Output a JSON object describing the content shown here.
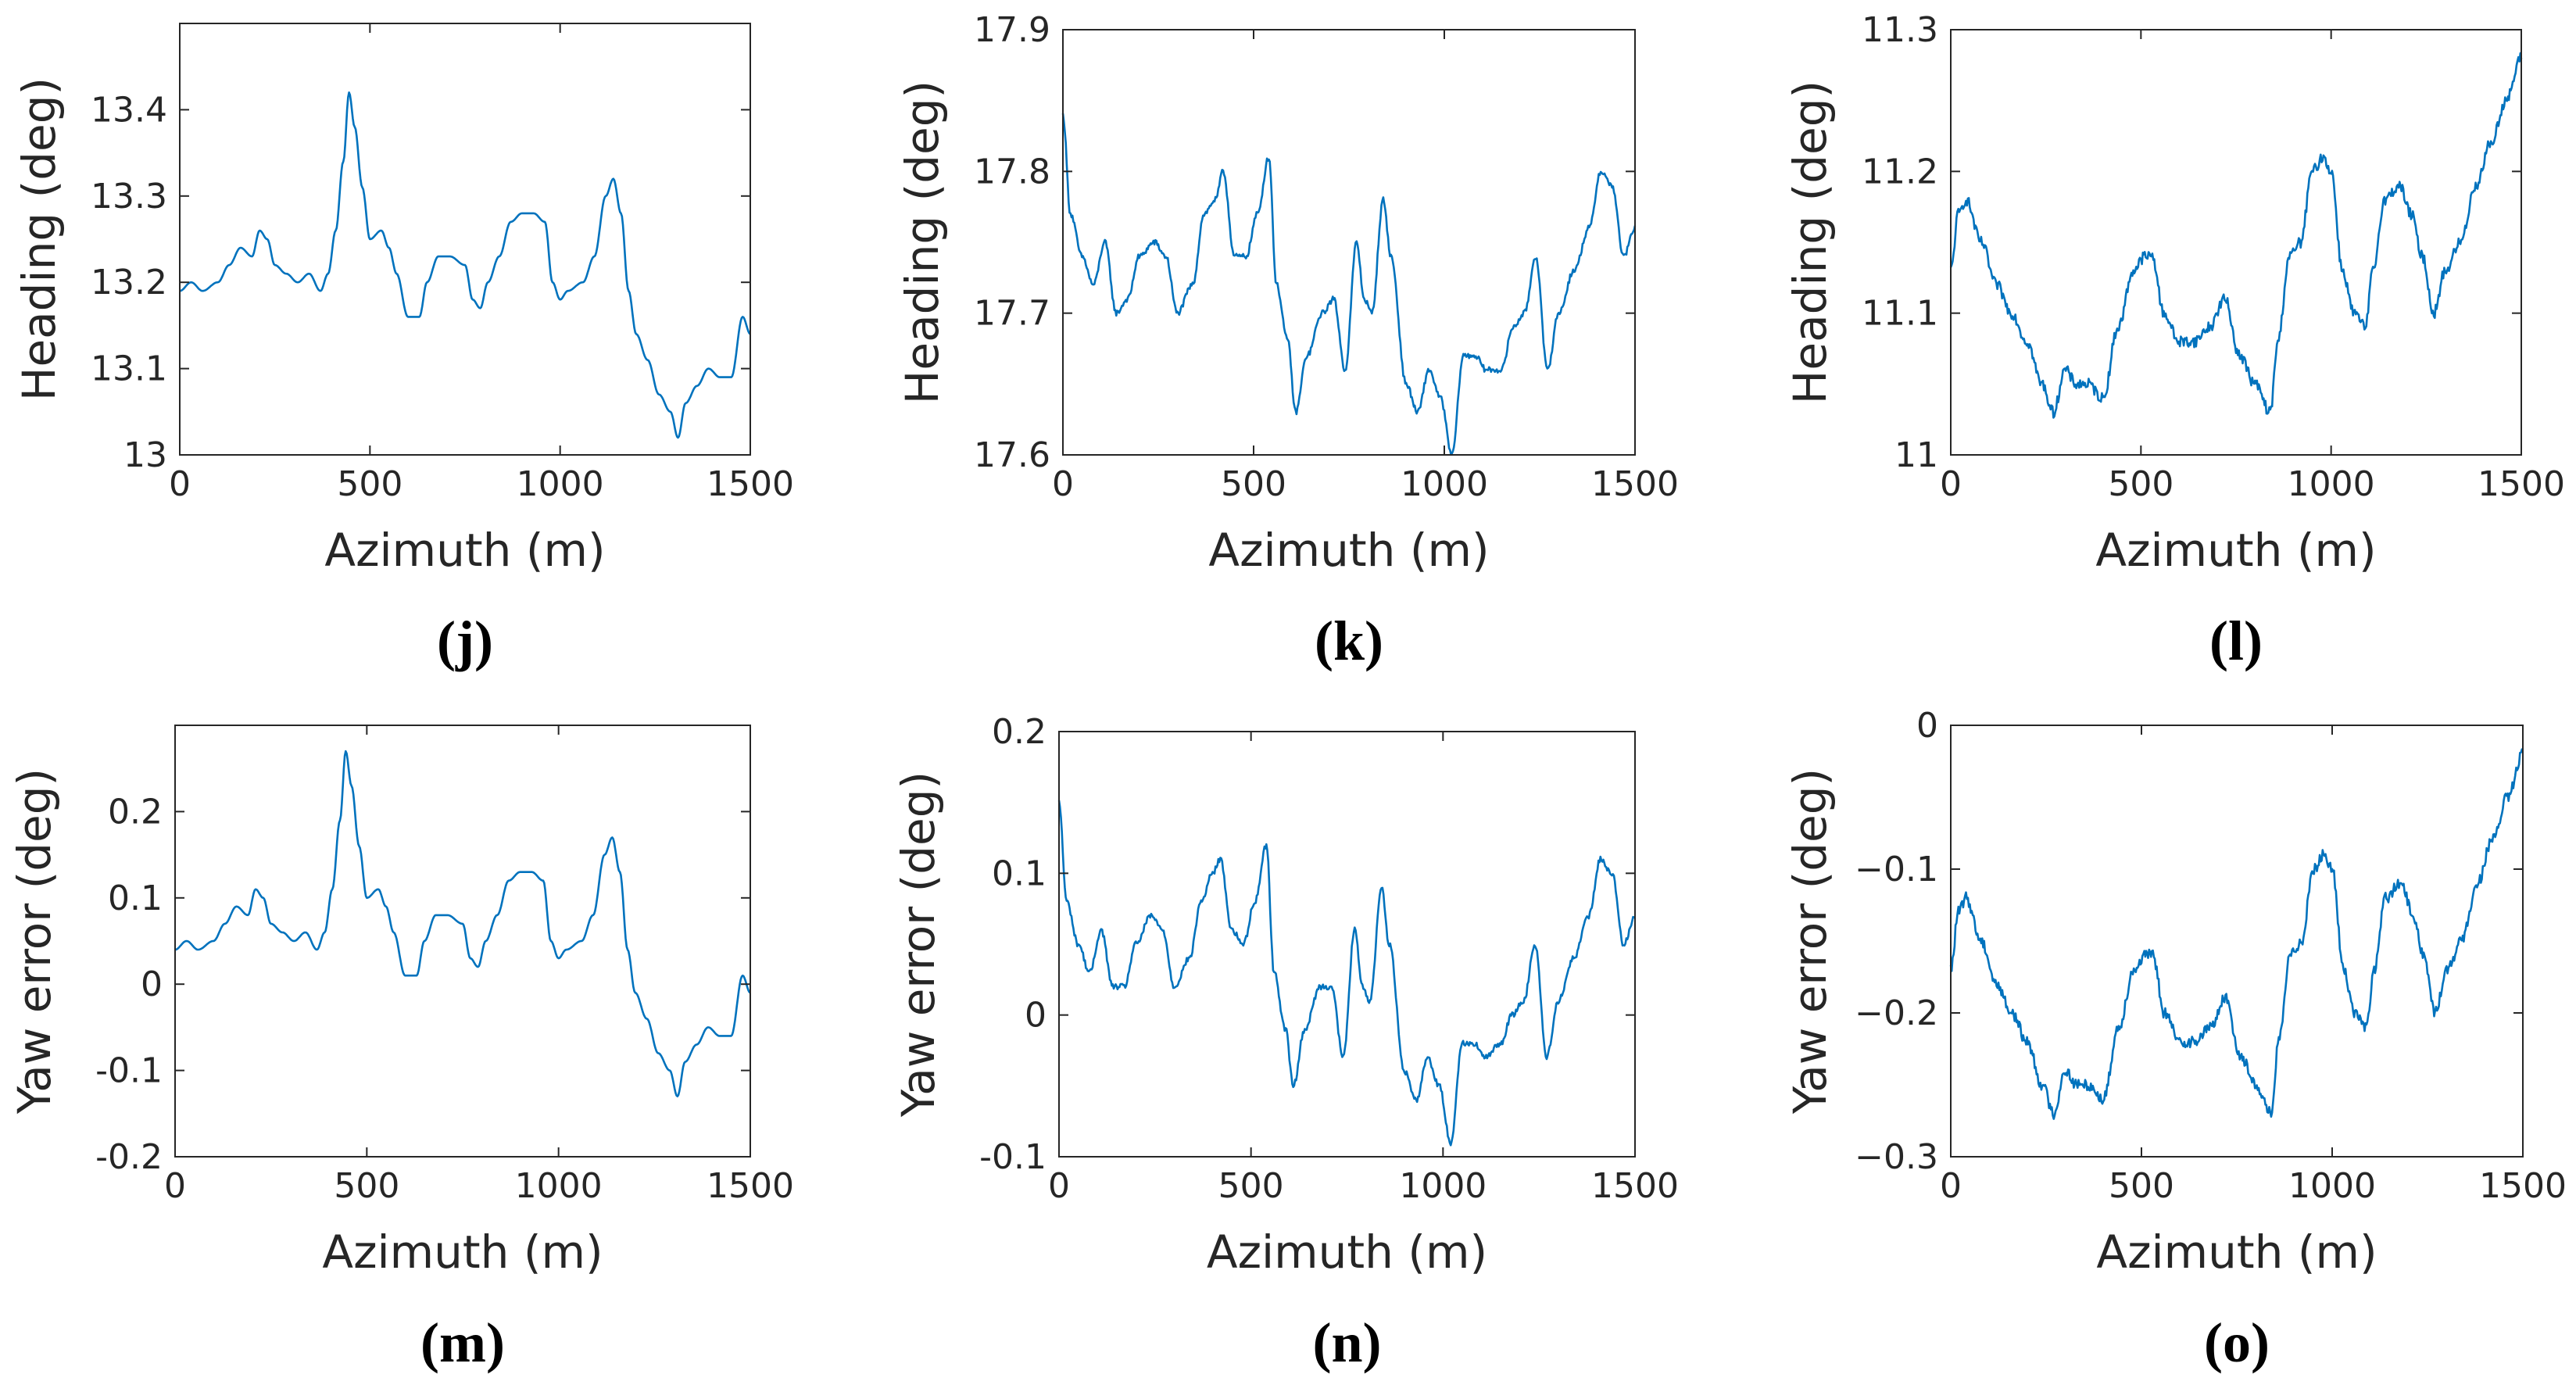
{
  "figure": {
    "panels": [
      "j",
      "k",
      "l",
      "m",
      "n",
      "o"
    ]
  },
  "chart_data": [
    {
      "id": "j",
      "type": "line",
      "panel_label": "(j)",
      "xlabel": "Azimuth (m)",
      "ylabel": "Heading (deg)",
      "xlim": [
        0,
        1500
      ],
      "ylim": [
        13.0,
        13.5
      ],
      "xticks": [
        0,
        500,
        1000,
        1500
      ],
      "xtick_labels": [
        "0",
        "500",
        "1000",
        "1500"
      ],
      "yticks": [
        13.0,
        13.1,
        13.2,
        13.3,
        13.4
      ],
      "ytick_labels": [
        "13",
        "13.1",
        "13.2",
        "13.3",
        "13.4"
      ],
      "noise": 0.0,
      "series": [
        {
          "name": "Heading",
          "color": "#0072BD",
          "x": [
            0,
            30,
            60,
            100,
            130,
            160,
            190,
            210,
            230,
            250,
            280,
            310,
            340,
            370,
            390,
            410,
            430,
            445,
            460,
            480,
            500,
            530,
            550,
            570,
            600,
            630,
            650,
            680,
            710,
            750,
            770,
            790,
            810,
            840,
            870,
            900,
            930,
            960,
            980,
            1000,
            1020,
            1060,
            1090,
            1120,
            1140,
            1160,
            1180,
            1200,
            1230,
            1260,
            1290,
            1310,
            1330,
            1360,
            1390,
            1420,
            1450,
            1480,
            1500
          ],
          "y": [
            13.19,
            13.2,
            13.19,
            13.2,
            13.22,
            13.24,
            13.23,
            13.26,
            13.25,
            13.22,
            13.21,
            13.2,
            13.21,
            13.19,
            13.21,
            13.26,
            13.34,
            13.42,
            13.38,
            13.31,
            13.25,
            13.26,
            13.24,
            13.21,
            13.16,
            13.16,
            13.2,
            13.23,
            13.23,
            13.22,
            13.18,
            13.17,
            13.2,
            13.23,
            13.27,
            13.28,
            13.28,
            13.27,
            13.2,
            13.18,
            13.19,
            13.2,
            13.23,
            13.3,
            13.32,
            13.28,
            13.19,
            13.14,
            13.11,
            13.07,
            13.05,
            13.02,
            13.06,
            13.08,
            13.1,
            13.09,
            13.09,
            13.16,
            13.14
          ]
        }
      ]
    },
    {
      "id": "k",
      "type": "line",
      "panel_label": "(k)",
      "xlabel": "Azimuth (m)",
      "ylabel": "Heading (deg)",
      "xlim": [
        0,
        1500
      ],
      "ylim": [
        17.6,
        17.9
      ],
      "xticks": [
        0,
        500,
        1000,
        1500
      ],
      "xtick_labels": [
        "0",
        "500",
        "1000",
        "1500"
      ],
      "yticks": [
        17.6,
        17.7,
        17.8,
        17.9
      ],
      "ytick_labels": [
        "17.6",
        "17.7",
        "17.8",
        "17.9"
      ],
      "noise": 0.002,
      "series": [
        {
          "name": "Heading",
          "color": "#0072BD",
          "x": [
            0,
            20,
            50,
            80,
            110,
            140,
            170,
            200,
            240,
            270,
            300,
            340,
            370,
            400,
            420,
            450,
            480,
            510,
            540,
            560,
            590,
            610,
            640,
            680,
            710,
            740,
            770,
            790,
            810,
            840,
            860,
            900,
            930,
            960,
            990,
            1020,
            1050,
            1080,
            1110,
            1150,
            1180,
            1210,
            1240,
            1270,
            1300,
            1340,
            1380,
            1410,
            1440,
            1470,
            1500
          ],
          "y": [
            17.84,
            17.77,
            17.74,
            17.72,
            17.75,
            17.7,
            17.71,
            17.74,
            17.75,
            17.74,
            17.7,
            17.72,
            17.77,
            17.78,
            17.8,
            17.74,
            17.74,
            17.77,
            17.81,
            17.72,
            17.68,
            17.63,
            17.67,
            17.7,
            17.71,
            17.66,
            17.75,
            17.71,
            17.7,
            17.78,
            17.74,
            17.65,
            17.63,
            17.66,
            17.64,
            17.6,
            17.67,
            17.67,
            17.66,
            17.66,
            17.69,
            17.7,
            17.74,
            17.66,
            17.7,
            17.73,
            17.76,
            17.8,
            17.79,
            17.74,
            17.76
          ]
        }
      ]
    },
    {
      "id": "l",
      "type": "line",
      "panel_label": "(l)",
      "xlabel": "Azimuth (m)",
      "ylabel": "Heading (deg)",
      "xlim": [
        0,
        1500
      ],
      "ylim": [
        11.0,
        11.3
      ],
      "xticks": [
        0,
        500,
        1000,
        1500
      ],
      "xtick_labels": [
        "0",
        "500",
        "1000",
        "1500"
      ],
      "yticks": [
        11.0,
        11.1,
        11.2,
        11.3
      ],
      "ytick_labels": [
        "11",
        "11.1",
        "11.2",
        "11.3"
      ],
      "noise": 0.004,
      "series": [
        {
          "name": "Heading",
          "color": "#0072BD",
          "x": [
            0,
            20,
            40,
            80,
            120,
            160,
            200,
            240,
            270,
            300,
            330,
            360,
            400,
            440,
            480,
            510,
            530,
            560,
            600,
            640,
            680,
            720,
            760,
            800,
            840,
            860,
            890,
            920,
            950,
            980,
            1000,
            1030,
            1060,
            1090,
            1110,
            1140,
            1180,
            1210,
            1240,
            1270,
            1300,
            1340,
            1380,
            1420,
            1460,
            1500
          ],
          "y": [
            11.13,
            11.17,
            11.18,
            11.15,
            11.12,
            11.1,
            11.08,
            11.05,
            11.03,
            11.06,
            11.05,
            11.05,
            11.04,
            11.09,
            11.13,
            11.14,
            11.14,
            11.1,
            11.08,
            11.08,
            11.09,
            11.11,
            11.07,
            11.05,
            11.03,
            11.08,
            11.14,
            11.15,
            11.2,
            11.21,
            11.2,
            11.13,
            11.1,
            11.09,
            11.13,
            11.18,
            11.19,
            11.17,
            11.14,
            11.1,
            11.13,
            11.15,
            11.19,
            11.22,
            11.25,
            11.28
          ]
        }
      ]
    },
    {
      "id": "m",
      "type": "line",
      "panel_label": "(m)",
      "xlabel": "Azimuth (m)",
      "ylabel": "Yaw error (deg)",
      "xlim": [
        0,
        1500
      ],
      "ylim": [
        -0.2,
        0.3
      ],
      "xticks": [
        0,
        500,
        1000,
        1500
      ],
      "xtick_labels": [
        "0",
        "500",
        "1000",
        "1500"
      ],
      "yticks": [
        -0.2,
        -0.1,
        0,
        0.1,
        0.2
      ],
      "ytick_labels": [
        "-0.2",
        "-0.1",
        "0",
        "0.1",
        "0.2"
      ],
      "noise": 0.0,
      "series": [
        {
          "name": "Yaw error",
          "color": "#0072BD",
          "x": [
            0,
            30,
            60,
            100,
            130,
            160,
            190,
            210,
            230,
            250,
            280,
            310,
            340,
            370,
            390,
            410,
            430,
            445,
            460,
            480,
            500,
            530,
            550,
            570,
            600,
            630,
            650,
            680,
            710,
            750,
            770,
            790,
            810,
            840,
            870,
            900,
            930,
            960,
            980,
            1000,
            1020,
            1060,
            1090,
            1120,
            1140,
            1160,
            1180,
            1200,
            1230,
            1260,
            1290,
            1310,
            1330,
            1360,
            1390,
            1420,
            1450,
            1480,
            1500
          ],
          "y": [
            0.04,
            0.05,
            0.04,
            0.05,
            0.07,
            0.09,
            0.08,
            0.11,
            0.1,
            0.07,
            0.06,
            0.05,
            0.06,
            0.04,
            0.06,
            0.11,
            0.19,
            0.27,
            0.23,
            0.16,
            0.1,
            0.11,
            0.09,
            0.06,
            0.01,
            0.01,
            0.05,
            0.08,
            0.08,
            0.07,
            0.03,
            0.02,
            0.05,
            0.08,
            0.12,
            0.13,
            0.13,
            0.12,
            0.05,
            0.03,
            0.04,
            0.05,
            0.08,
            0.15,
            0.17,
            0.13,
            0.04,
            -0.01,
            -0.04,
            -0.08,
            -0.1,
            -0.13,
            -0.09,
            -0.07,
            -0.05,
            -0.06,
            -0.06,
            0.01,
            -0.01
          ]
        }
      ]
    },
    {
      "id": "n",
      "type": "line",
      "panel_label": "(n)",
      "xlabel": "Azimuth (m)",
      "ylabel": "Yaw error (deg)",
      "xlim": [
        0,
        1500
      ],
      "ylim": [
        -0.1,
        0.2
      ],
      "xticks": [
        0,
        500,
        1000,
        1500
      ],
      "xtick_labels": [
        "0",
        "500",
        "1000",
        "1500"
      ],
      "yticks": [
        -0.1,
        0,
        0.1,
        0.2
      ],
      "ytick_labels": [
        "-0.1",
        "0",
        "0.1",
        "0.2"
      ],
      "noise": 0.002,
      "series": [
        {
          "name": "Yaw error",
          "color": "#0072BD",
          "x": [
            0,
            20,
            50,
            80,
            110,
            140,
            170,
            200,
            240,
            270,
            300,
            340,
            370,
            400,
            420,
            450,
            480,
            510,
            540,
            560,
            590,
            610,
            640,
            680,
            710,
            740,
            770,
            790,
            810,
            840,
            860,
            900,
            930,
            960,
            990,
            1020,
            1050,
            1080,
            1110,
            1150,
            1180,
            1210,
            1240,
            1270,
            1300,
            1340,
            1380,
            1410,
            1440,
            1470,
            1500
          ],
          "y": [
            0.15,
            0.08,
            0.05,
            0.03,
            0.06,
            0.02,
            0.02,
            0.05,
            0.07,
            0.06,
            0.02,
            0.04,
            0.08,
            0.1,
            0.11,
            0.06,
            0.05,
            0.08,
            0.12,
            0.03,
            -0.01,
            -0.05,
            -0.01,
            0.02,
            0.02,
            -0.03,
            0.06,
            0.02,
            0.01,
            0.09,
            0.05,
            -0.04,
            -0.06,
            -0.03,
            -0.05,
            -0.09,
            -0.02,
            -0.02,
            -0.03,
            -0.02,
            0.0,
            0.01,
            0.05,
            -0.03,
            0.01,
            0.04,
            0.07,
            0.11,
            0.1,
            0.05,
            0.07
          ]
        }
      ]
    },
    {
      "id": "o",
      "type": "line",
      "panel_label": "(o)",
      "xlabel": "Azimuth (m)",
      "ylabel": "Yaw error (deg)",
      "xlim": [
        0,
        1500
      ],
      "ylim": [
        -0.3,
        0.0
      ],
      "xticks": [
        0,
        500,
        1000,
        1500
      ],
      "xtick_labels": [
        "0",
        "500",
        "1000",
        "1500"
      ],
      "yticks": [
        -0.3,
        -0.2,
        -0.1,
        0
      ],
      "ytick_labels": [
        "−0.3",
        "−0.2",
        "−0.1",
        "0"
      ],
      "noise": 0.004,
      "series": [
        {
          "name": "Yaw error",
          "color": "#0072BD",
          "x": [
            0,
            20,
            40,
            80,
            120,
            160,
            200,
            240,
            270,
            300,
            330,
            360,
            400,
            440,
            480,
            510,
            530,
            560,
            600,
            640,
            680,
            720,
            760,
            800,
            840,
            860,
            890,
            920,
            950,
            980,
            1000,
            1030,
            1060,
            1090,
            1110,
            1140,
            1180,
            1210,
            1240,
            1270,
            1300,
            1340,
            1380,
            1420,
            1460,
            1500
          ],
          "y": [
            -0.17,
            -0.13,
            -0.12,
            -0.15,
            -0.18,
            -0.2,
            -0.22,
            -0.25,
            -0.27,
            -0.24,
            -0.25,
            -0.25,
            -0.26,
            -0.21,
            -0.17,
            -0.16,
            -0.16,
            -0.2,
            -0.22,
            -0.22,
            -0.21,
            -0.19,
            -0.23,
            -0.25,
            -0.27,
            -0.22,
            -0.16,
            -0.15,
            -0.1,
            -0.09,
            -0.1,
            -0.17,
            -0.2,
            -0.21,
            -0.17,
            -0.12,
            -0.11,
            -0.13,
            -0.16,
            -0.2,
            -0.17,
            -0.15,
            -0.11,
            -0.08,
            -0.05,
            -0.02
          ]
        }
      ]
    }
  ]
}
